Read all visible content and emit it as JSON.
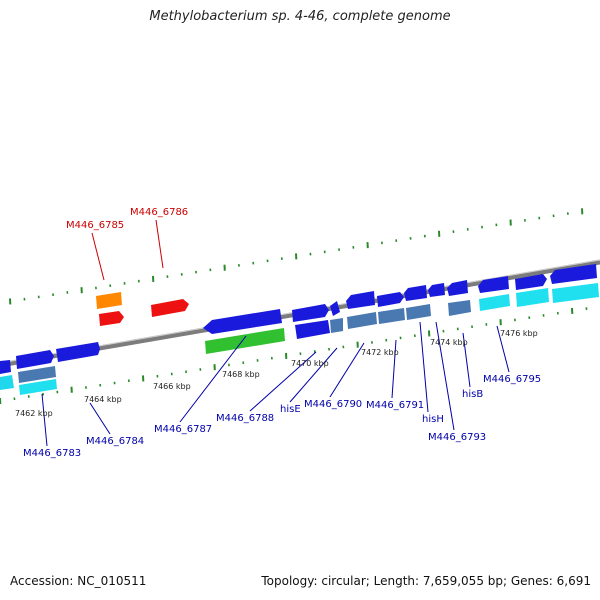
{
  "title": "Methylobacterium sp. 4-46, complete genome",
  "footer": {
    "accession": "Accession: NC_010511",
    "stats": "Topology: circular; Length: 7,659,055 bp; Genes: 6,691"
  },
  "colors": {
    "backbone": "#8a8a8a",
    "tick": "#2a8a2a",
    "cds_forward": "#1a1adc",
    "cds_reverse": "#1a1adc",
    "gene_steelblue": "#4a78b0",
    "gene_cyan": "#20e0f0",
    "gene_green": "#30c030",
    "gene_orange": "#ff8800",
    "gene_red": "#ee1111",
    "label_blue": "#0000aa",
    "label_red": "#cc0000"
  },
  "kbp_ticks": [
    "7462 kbp",
    "7464 kbp",
    "7466 kbp",
    "7468 kbp",
    "7470 kbp",
    "7472 kbp",
    "7474 kbp",
    "7476 kbp"
  ],
  "gene_labels": [
    {
      "text": "M446_6783",
      "color": "blue"
    },
    {
      "text": "M446_6784",
      "color": "blue"
    },
    {
      "text": "M446_6785",
      "color": "red"
    },
    {
      "text": "M446_6786",
      "color": "red"
    },
    {
      "text": "M446_6787",
      "color": "blue"
    },
    {
      "text": "M446_6788",
      "color": "blue"
    },
    {
      "text": "hisE",
      "color": "blue"
    },
    {
      "text": "M446_6790",
      "color": "blue"
    },
    {
      "text": "M446_6791",
      "color": "blue"
    },
    {
      "text": "hisH",
      "color": "blue"
    },
    {
      "text": "M446_6793",
      "color": "blue"
    },
    {
      "text": "hisB",
      "color": "blue"
    },
    {
      "text": "M446_6795",
      "color": "blue"
    }
  ]
}
